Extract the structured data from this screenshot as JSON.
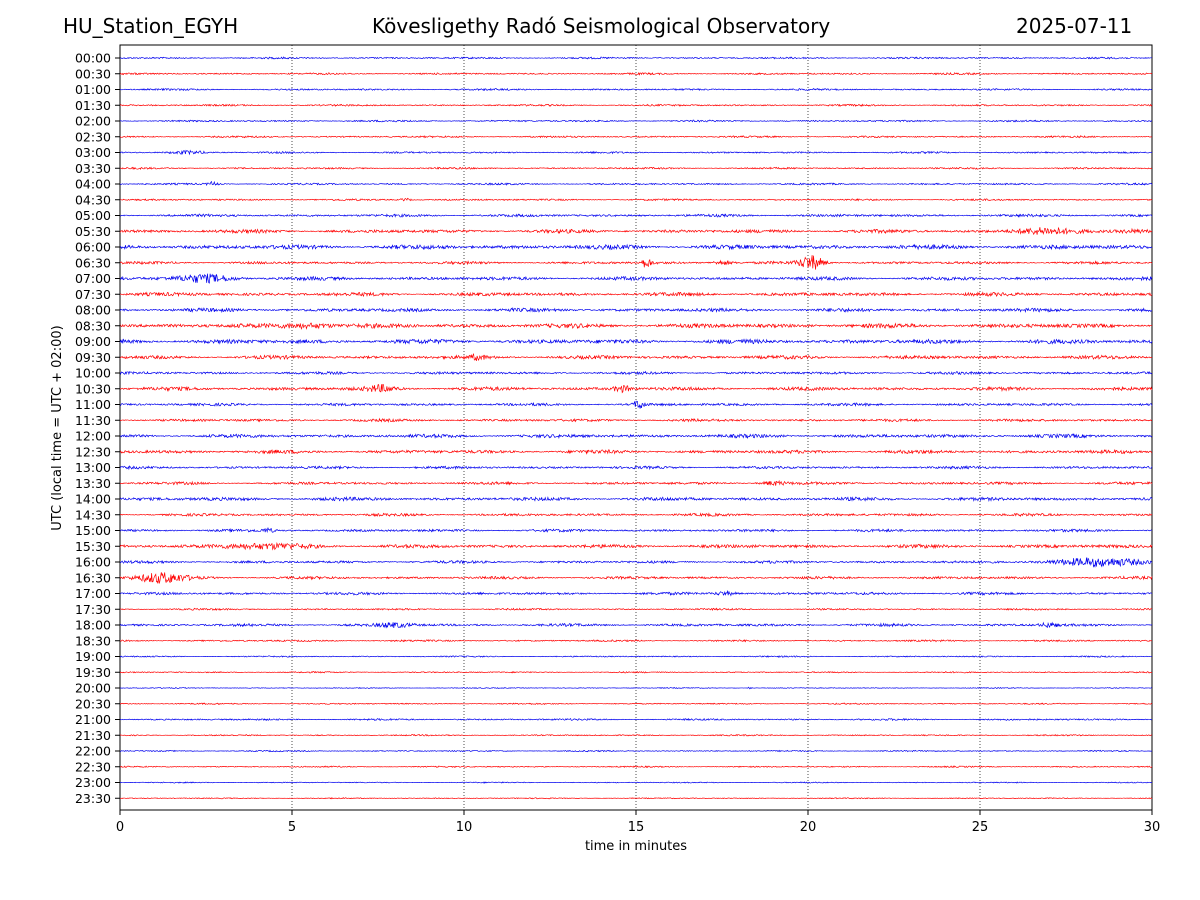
{
  "header": {
    "station": "HU_Station_EGYH",
    "title": "Kövesligethy Radó Seismological Observatory",
    "date": "2025-07-11"
  },
  "chart_data": {
    "type": "line",
    "title": "Kövesligethy Radó Seismological Observatory",
    "xlabel": "time in minutes",
    "ylabel": "UTC (local time = UTC + 02:00)",
    "xlim": [
      0,
      30
    ],
    "xticks": [
      "0",
      "5",
      "10",
      "15",
      "20",
      "25",
      "30"
    ],
    "grid": "vertical dotted at x ticks",
    "row_labels": [
      "00:00",
      "00:30",
      "01:00",
      "01:30",
      "02:00",
      "02:30",
      "03:00",
      "03:30",
      "04:00",
      "04:30",
      "05:00",
      "05:30",
      "06:00",
      "06:30",
      "07:00",
      "07:30",
      "08:00",
      "08:30",
      "09:00",
      "09:30",
      "10:00",
      "10:30",
      "11:00",
      "11:30",
      "12:00",
      "12:30",
      "13:00",
      "13:30",
      "14:00",
      "14:30",
      "15:00",
      "15:30",
      "16:00",
      "16:30",
      "17:00",
      "17:30",
      "18:00",
      "18:30",
      "19:00",
      "19:30",
      "20:00",
      "20:30",
      "21:00",
      "21:30",
      "22:00",
      "22:30",
      "23:00",
      "23:30"
    ],
    "row_colors": [
      "#0000ee",
      "#ff0000"
    ],
    "noise_level": [
      2,
      2,
      2,
      2,
      2,
      2,
      2,
      2,
      2,
      2,
      3,
      4,
      5,
      3,
      4,
      4,
      4,
      5,
      5,
      4,
      3,
      4,
      3,
      3,
      4,
      4,
      3,
      3,
      4,
      3,
      3,
      4,
      3,
      3,
      3,
      2,
      3,
      2,
      1.5,
      1.5,
      1,
      1.5,
      2,
      1.5,
      1.5,
      1.5,
      1.2,
      1.2
    ],
    "events": [
      {
        "row": "03:00",
        "x": 2.0,
        "amp": 3,
        "dur": 1.0
      },
      {
        "row": "04:00",
        "x": 2.7,
        "amp": 4,
        "dur": 0.3
      },
      {
        "row": "04:30",
        "x": 8.3,
        "amp": 3,
        "dur": 0.3
      },
      {
        "row": "05:30",
        "x": 26.8,
        "amp": 6,
        "dur": 1.5
      },
      {
        "row": "05:30",
        "x": 29.5,
        "amp": 4,
        "dur": 1.0
      },
      {
        "row": "06:30",
        "x": 15.3,
        "amp": 9,
        "dur": 0.3
      },
      {
        "row": "06:30",
        "x": 17.5,
        "amp": 4,
        "dur": 0.6
      },
      {
        "row": "06:30",
        "x": 20.1,
        "amp": 14,
        "dur": 0.7
      },
      {
        "row": "07:00",
        "x": 2.5,
        "amp": 7,
        "dur": 1.6
      },
      {
        "row": "08:30",
        "x": 5.5,
        "amp": 5,
        "dur": 1.5
      },
      {
        "row": "09:30",
        "x": 10.4,
        "amp": 4,
        "dur": 0.4
      },
      {
        "row": "10:30",
        "x": 7.6,
        "amp": 6,
        "dur": 0.8
      },
      {
        "row": "10:30",
        "x": 14.6,
        "amp": 6,
        "dur": 0.5
      },
      {
        "row": "11:00",
        "x": 15.1,
        "amp": 9,
        "dur": 0.3
      },
      {
        "row": "13:30",
        "x": 19.0,
        "amp": 4,
        "dur": 0.7
      },
      {
        "row": "15:00",
        "x": 4.3,
        "amp": 4,
        "dur": 0.3
      },
      {
        "row": "15:30",
        "x": 4.0,
        "amp": 4,
        "dur": 3.0
      },
      {
        "row": "16:00",
        "x": 28.5,
        "amp": 7,
        "dur": 3.0
      },
      {
        "row": "16:30",
        "x": 1.2,
        "amp": 10,
        "dur": 1.4
      },
      {
        "row": "17:00",
        "x": 17.6,
        "amp": 4,
        "dur": 0.6
      },
      {
        "row": "18:00",
        "x": 8.0,
        "amp": 4,
        "dur": 1.0
      },
      {
        "row": "18:00",
        "x": 27.0,
        "amp": 4,
        "dur": 0.5
      },
      {
        "row": "20:00",
        "x": 18.3,
        "amp": 3,
        "dur": 0.1
      }
    ]
  }
}
